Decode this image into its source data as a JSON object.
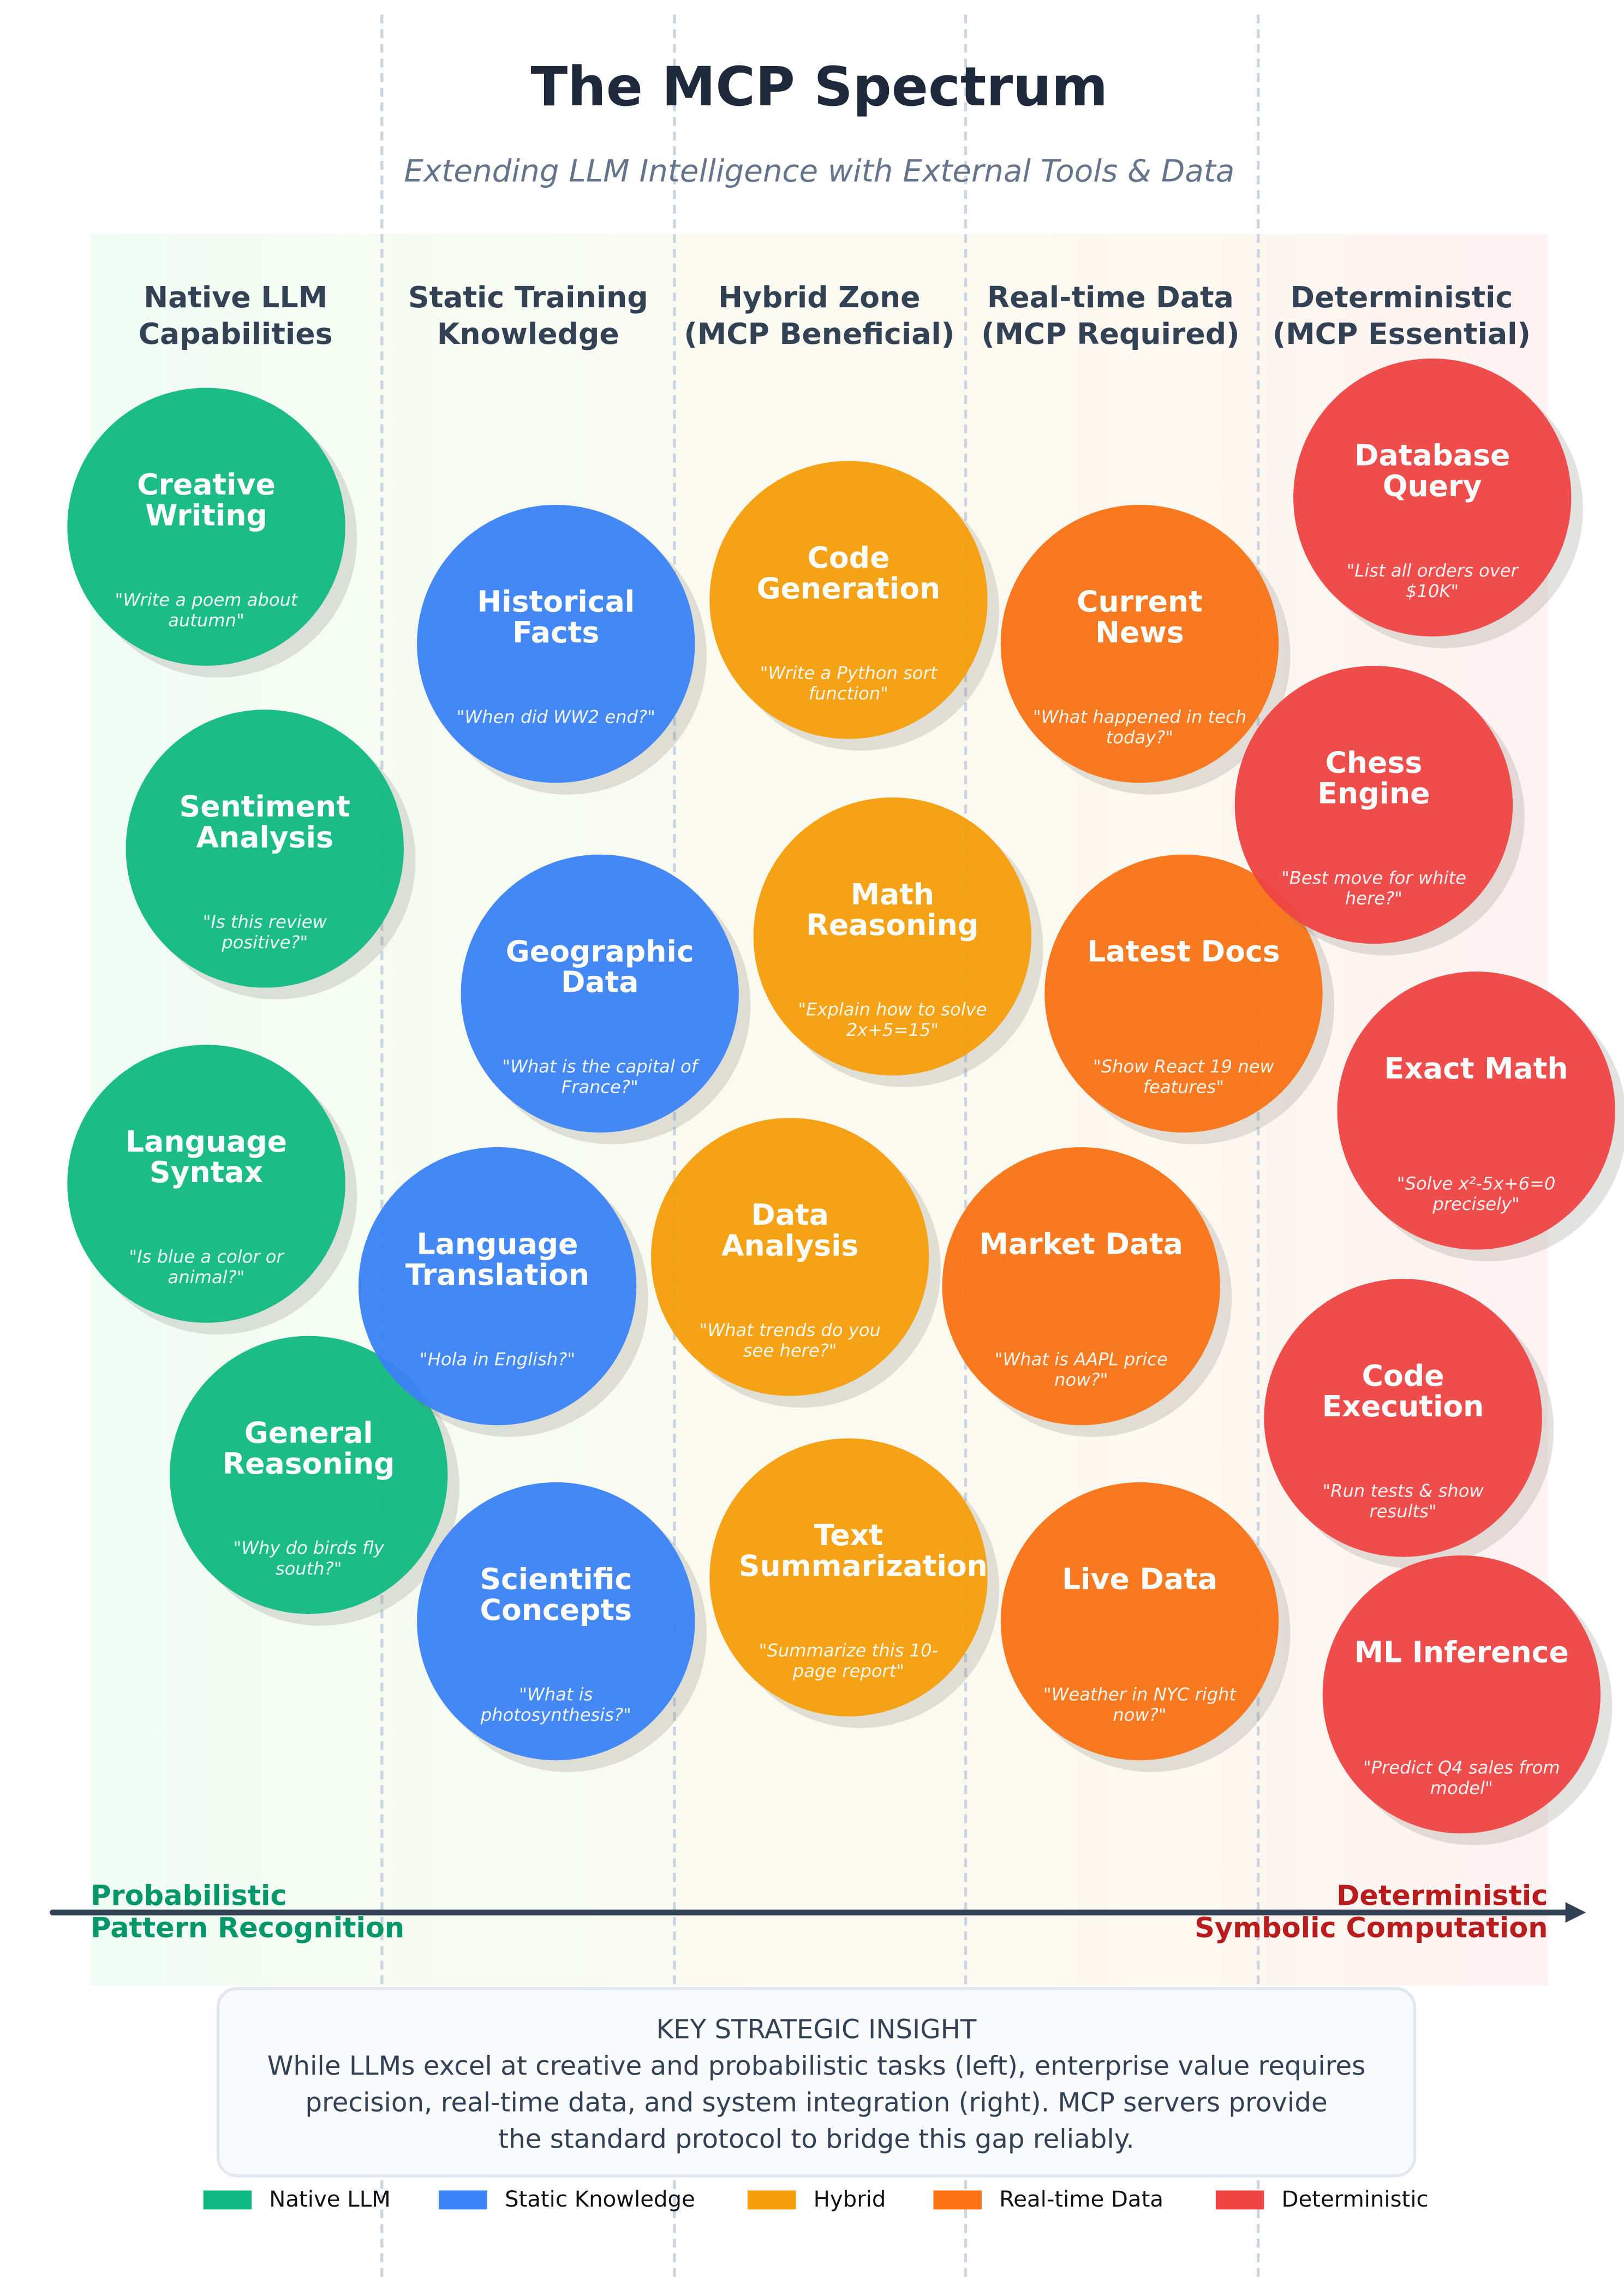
{
  "title": "The MCP Spectrum",
  "subtitle": "Extending LLM Intelligence with External Tools & Data",
  "colors": {
    "native": "#10b981",
    "static": "#3b82f6",
    "hybrid": "#f59e0b",
    "realtime": "#f97316",
    "deterministic": "#ef4444"
  },
  "columns": [
    {
      "line1": "Native LLM",
      "line2": "Capabilities"
    },
    {
      "line1": "Static Training",
      "line2": "Knowledge"
    },
    {
      "line1": "Hybrid Zone",
      "line2": "(MCP Beneficial)"
    },
    {
      "line1": "Real-time Data",
      "line2": "(MCP Required)"
    },
    {
      "line1": "Deterministic",
      "line2": "(MCP Essential)"
    }
  ],
  "capabilities": [
    {
      "category": "native",
      "title": "Creative Writing",
      "example": "\"Write a poem about autumn\""
    },
    {
      "category": "native",
      "title": "Sentiment Analysis",
      "example": "\"Is this review positive?\""
    },
    {
      "category": "native",
      "title": "Language Syntax",
      "example": "\"Is blue a color or animal?\""
    },
    {
      "category": "native",
      "title": "General Reasoning",
      "example": "\"Why do birds fly south?\""
    },
    {
      "category": "static",
      "title": "Historical Facts",
      "example": "\"When did WW2 end?\""
    },
    {
      "category": "static",
      "title": "Geographic Data",
      "example": "\"What is the capital of France?\""
    },
    {
      "category": "static",
      "title": "Language Translation",
      "example": "\"Hola in English?\""
    },
    {
      "category": "static",
      "title": "Scientific Concepts",
      "example": "\"What is photosynthesis?\""
    },
    {
      "category": "hybrid",
      "title": "Code Generation",
      "example": "\"Write a Python sort function\""
    },
    {
      "category": "hybrid",
      "title": "Math Reasoning",
      "example": "\"Explain how to solve 2x+5=15\""
    },
    {
      "category": "hybrid",
      "title": "Data Analysis",
      "example": "\"What trends do you see here?\""
    },
    {
      "category": "hybrid",
      "title": "Text Summarization",
      "example": "\"Summarize this 10-page report\""
    },
    {
      "category": "realtime",
      "title": "Current News",
      "example": "\"What happened in tech today?\""
    },
    {
      "category": "realtime",
      "title": "Latest Docs",
      "example": "\"Show React 19 new features\""
    },
    {
      "category": "realtime",
      "title": "Market Data",
      "example": "\"What is AAPL price now?\""
    },
    {
      "category": "realtime",
      "title": "Live Data",
      "example": "\"Weather in NYC right now?\""
    },
    {
      "category": "deterministic",
      "title": "Database Query",
      "example": "\"List all orders over $10K\""
    },
    {
      "category": "deterministic",
      "title": "Chess Engine",
      "example": "\"Best move for white here?\""
    },
    {
      "category": "deterministic",
      "title": "Exact Math",
      "example": "\"Solve x²-5x+6=0 precisely\""
    },
    {
      "category": "deterministic",
      "title": "Code Execution",
      "example": "\"Run tests & show results\""
    },
    {
      "category": "deterministic",
      "title": "ML Inference",
      "example": "\"Predict Q4 sales from model\""
    }
  ],
  "axis": {
    "left_line1": "Probabilistic",
    "left_line2": "Pattern Recognition",
    "right_line1": "Deterministic",
    "right_line2": "Symbolic Computation"
  },
  "insight": {
    "heading": "KEY STRATEGIC INSIGHT",
    "line1": "While LLMs excel at creative and probabilistic tasks (left), enterprise value requires",
    "line2": "precision, real-time data, and system integration (right). MCP servers provide",
    "line3": "the standard protocol to bridge this gap reliably."
  },
  "legend": [
    {
      "key": "native",
      "label": "Native LLM"
    },
    {
      "key": "static",
      "label": "Static Knowledge"
    },
    {
      "key": "hybrid",
      "label": "Hybrid"
    },
    {
      "key": "realtime",
      "label": "Real-time Data"
    },
    {
      "key": "deterministic",
      "label": "Deterministic"
    }
  ]
}
